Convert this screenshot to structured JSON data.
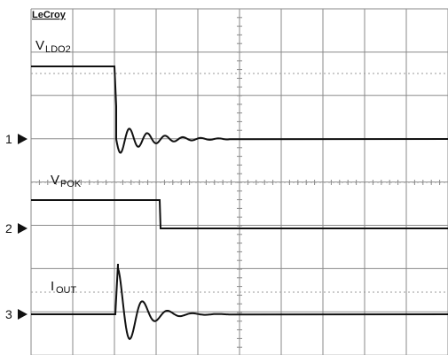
{
  "brand": "LeCroy",
  "traces": [
    {
      "label": "V",
      "subscript": "LDO2",
      "channel": "1"
    },
    {
      "label": "V",
      "subscript": "POK",
      "channel": "2"
    },
    {
      "label": "I",
      "subscript": "OUT",
      "channel": "3"
    }
  ]
}
